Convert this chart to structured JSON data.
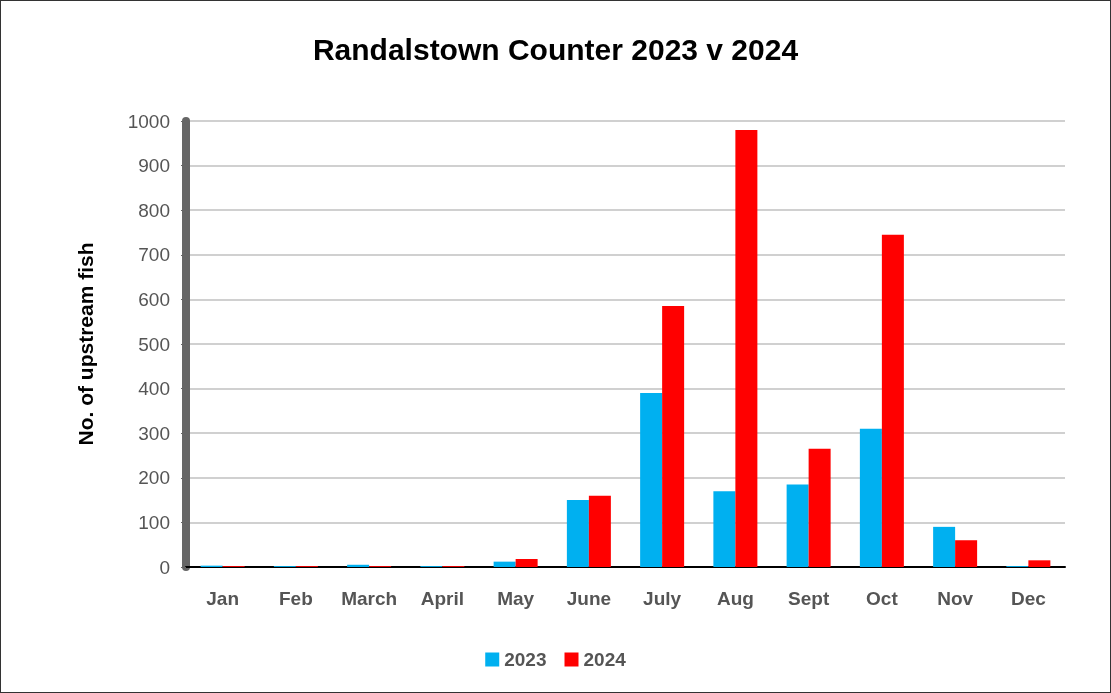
{
  "chart_data": {
    "type": "bar",
    "title": "Randalstown Counter 2023 v 2024",
    "ylabel": "No. of upstream fish",
    "categories": [
      "Jan",
      "Feb",
      "March",
      "April",
      "May",
      "June",
      "July",
      "Aug",
      "Sept",
      "Oct",
      "Nov",
      "Dec"
    ],
    "series": [
      {
        "name": "2023",
        "color": "#00b0f0",
        "values": [
          3,
          2,
          5,
          2,
          12,
          150,
          390,
          170,
          185,
          310,
          90,
          2
        ]
      },
      {
        "name": "2024",
        "color": "#ff0000",
        "values": [
          2,
          2,
          2,
          2,
          18,
          160,
          585,
          980,
          265,
          745,
          60,
          15
        ]
      }
    ],
    "ylim": [
      0,
      1000
    ],
    "yticks": [
      0,
      100,
      200,
      300,
      400,
      500,
      600,
      700,
      800,
      900,
      1000
    ],
    "grid": "y",
    "legend": "bottom"
  }
}
